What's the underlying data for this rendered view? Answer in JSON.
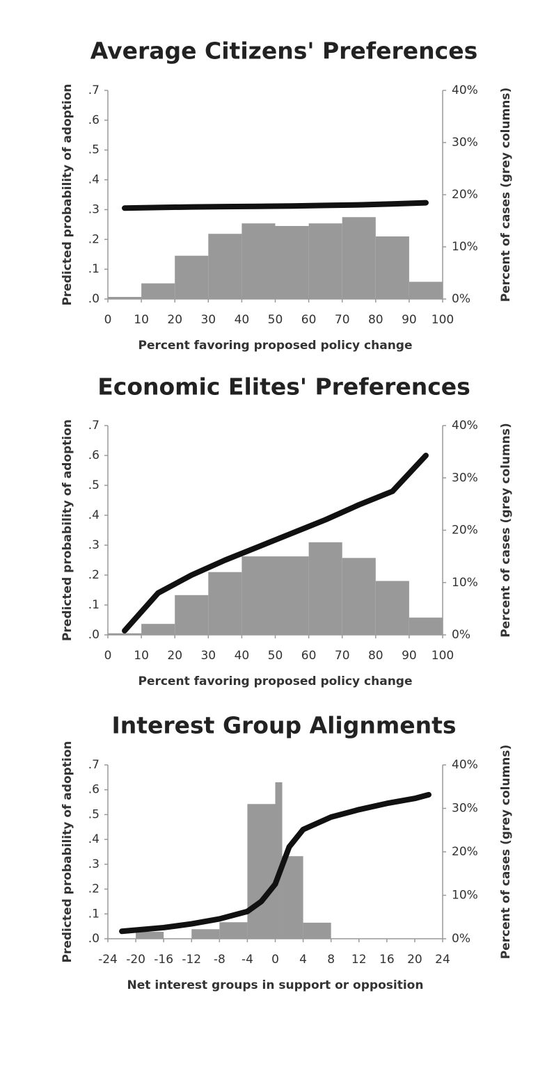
{
  "chart_data": [
    {
      "type": "combo",
      "title": "Average Citizens' Preferences",
      "xlabel": "Percent favoring proposed policy change",
      "ylabel": "Predicted probability of adoption",
      "y2label": "Percent of cases (grey columns)",
      "xlim": [
        0,
        100
      ],
      "xticks": [
        0,
        10,
        20,
        30,
        40,
        50,
        60,
        70,
        80,
        90,
        100
      ],
      "ylim": [
        0,
        0.7
      ],
      "yticks": [
        {
          "value": 0,
          "label": ".0"
        },
        {
          "value": 0.1,
          "label": ".1"
        },
        {
          "value": 0.2,
          "label": ".2"
        },
        {
          "value": 0.3,
          "label": ".3"
        },
        {
          "value": 0.4,
          "label": ".4"
        },
        {
          "value": 0.5,
          "label": ".5"
        },
        {
          "value": 0.6,
          "label": ".6"
        },
        {
          "value": 0.7,
          "label": ".7"
        }
      ],
      "y2lim": [
        0,
        40
      ],
      "y2ticks": [
        {
          "value": 0,
          "label": "0%"
        },
        {
          "value": 10,
          "label": "10%"
        },
        {
          "value": 20,
          "label": "20%"
        },
        {
          "value": 30,
          "label": "30%"
        },
        {
          "value": 40,
          "label": "40%"
        }
      ],
      "series": [
        {
          "type": "histogram",
          "axis": "y2",
          "color": "#999999",
          "bins": [
            0,
            10,
            20,
            30,
            40,
            50,
            60,
            70,
            80,
            90,
            100
          ],
          "values": [
            0.4,
            3,
            8.3,
            12.5,
            14.5,
            14,
            14.5,
            15.7,
            12,
            3.3
          ]
        },
        {
          "type": "line",
          "color": "#111111",
          "x": [
            5,
            15,
            25,
            35,
            45,
            55,
            65,
            75,
            85,
            95
          ],
          "values": [
            0.305,
            0.307,
            0.309,
            0.31,
            0.311,
            0.312,
            0.314,
            0.316,
            0.319,
            0.323
          ]
        }
      ]
    },
    {
      "type": "combo",
      "title": "Economic Elites' Preferences",
      "xlabel": "Percent favoring proposed policy change",
      "ylabel": "Predicted probability of adoption",
      "y2label": "Percent of cases (grey columns)",
      "xlim": [
        0,
        100
      ],
      "xticks": [
        0,
        10,
        20,
        30,
        40,
        50,
        60,
        70,
        80,
        90,
        100
      ],
      "ylim": [
        0,
        0.7
      ],
      "yticks": [
        {
          "value": 0,
          "label": ".0"
        },
        {
          "value": 0.1,
          "label": ".1"
        },
        {
          "value": 0.2,
          "label": ".2"
        },
        {
          "value": 0.3,
          "label": ".3"
        },
        {
          "value": 0.4,
          "label": ".4"
        },
        {
          "value": 0.5,
          "label": ".5"
        },
        {
          "value": 0.6,
          "label": ".6"
        },
        {
          "value": 0.7,
          "label": ".7"
        }
      ],
      "y2lim": [
        0,
        40
      ],
      "y2ticks": [
        {
          "value": 0,
          "label": "0%"
        },
        {
          "value": 10,
          "label": "10%"
        },
        {
          "value": 20,
          "label": "20%"
        },
        {
          "value": 30,
          "label": "30%"
        },
        {
          "value": 40,
          "label": "40%"
        }
      ],
      "series": [
        {
          "type": "histogram",
          "axis": "y2",
          "color": "#999999",
          "bins": [
            0,
            10,
            20,
            30,
            40,
            50,
            60,
            70,
            80,
            90,
            100
          ],
          "values": [
            0.3,
            2.1,
            7.6,
            12,
            15,
            15,
            17.7,
            14.7,
            10.3,
            3.3
          ]
        },
        {
          "type": "line",
          "color": "#111111",
          "x": [
            5,
            15,
            25,
            35,
            45,
            55,
            65,
            75,
            85,
            95
          ],
          "values": [
            0.014,
            0.14,
            0.2,
            0.25,
            0.295,
            0.34,
            0.385,
            0.435,
            0.48,
            0.6
          ]
        }
      ]
    },
    {
      "type": "combo",
      "title": "Interest Group Alignments",
      "xlabel": "Net interest groups in support or opposition",
      "ylabel": "Predicted probability of adoption",
      "y2label": "Percent of cases (grey columns)",
      "xlim": [
        -24,
        24
      ],
      "xticks": [
        -24,
        -20,
        -16,
        -12,
        -8,
        -4,
        0,
        4,
        8,
        12,
        16,
        20,
        24
      ],
      "ylim": [
        0,
        0.7
      ],
      "yticks": [
        {
          "value": 0,
          "label": ".0"
        },
        {
          "value": 0.1,
          "label": ".1"
        },
        {
          "value": 0.2,
          "label": ".2"
        },
        {
          "value": 0.3,
          "label": ".3"
        },
        {
          "value": 0.4,
          "label": ".4"
        },
        {
          "value": 0.5,
          "label": ".5"
        },
        {
          "value": 0.6,
          "label": ".6"
        },
        {
          "value": 0.7,
          "label": ".7"
        }
      ],
      "y2lim": [
        0,
        40
      ],
      "y2ticks": [
        {
          "value": 0,
          "label": "0%"
        },
        {
          "value": 10,
          "label": "10%"
        },
        {
          "value": 20,
          "label": "20%"
        },
        {
          "value": 30,
          "label": "30%"
        },
        {
          "value": 40,
          "label": "40%"
        }
      ],
      "series": [
        {
          "type": "histogram",
          "axis": "y2",
          "color": "#999999",
          "bins": [
            -24,
            -20,
            -16,
            -12,
            -8,
            -4,
            0,
            1,
            4,
            8,
            12,
            16,
            20,
            24
          ],
          "values": [
            0,
            1.6,
            0,
            2.2,
            3.8,
            31,
            36,
            19,
            3.7,
            0,
            0,
            0,
            0
          ]
        },
        {
          "type": "line",
          "color": "#111111",
          "x": [
            -22,
            -20,
            -16,
            -12,
            -8,
            -4,
            -2,
            0,
            2,
            4,
            8,
            12,
            16,
            20,
            22
          ],
          "values": [
            0.03,
            0.035,
            0.045,
            0.06,
            0.08,
            0.11,
            0.15,
            0.22,
            0.37,
            0.44,
            0.49,
            0.52,
            0.545,
            0.565,
            0.58
          ]
        }
      ]
    }
  ]
}
